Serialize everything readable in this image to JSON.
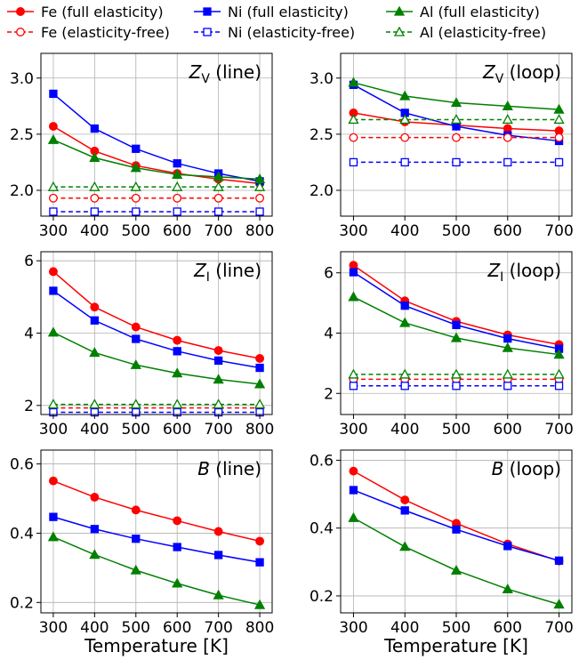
{
  "colors": {
    "Fe": "#ff0000",
    "Ni": "#0000ff",
    "Al": "#008000",
    "grid": "#b0b0b0"
  },
  "legend": {
    "placement": "top",
    "entries": [
      {
        "label": "Fe (full elasticity)",
        "color": "#ff0000",
        "marker": "circle",
        "style": "solid"
      },
      {
        "label": "Ni (full elasticity)",
        "color": "#0000ff",
        "marker": "square",
        "style": "solid"
      },
      {
        "label": "Al (full elasticity)",
        "color": "#008000",
        "marker": "triangle",
        "style": "solid"
      },
      {
        "label": "Fe (elasticity-free)",
        "color": "#ff0000",
        "marker": "circle",
        "style": "dashed"
      },
      {
        "label": "Ni (elasticity-free)",
        "color": "#0000ff",
        "marker": "square",
        "style": "dashed"
      },
      {
        "label": "Al (elasticity-free)",
        "color": "#008000",
        "marker": "triangle",
        "style": "dashed"
      }
    ]
  },
  "xlabel": "Temperature [K]",
  "chart_data": [
    {
      "type": "line",
      "title_sym": "Z",
      "title_sub": "V",
      "title_rest": " (line)",
      "title_italic": true,
      "x": [
        300,
        400,
        500,
        600,
        700,
        800
      ],
      "xlim": [
        270,
        830
      ],
      "ylim": [
        1.77,
        3.22
      ],
      "xticks": [
        300,
        400,
        500,
        600,
        700,
        800
      ],
      "yticks": [
        2.0,
        2.5,
        3.0
      ],
      "ytick_labels": [
        "2.0",
        "2.5",
        "3.0"
      ],
      "grid": true,
      "series": [
        {
          "name": "Fe (full elasticity)",
          "color": "#ff0000",
          "marker": "circle",
          "dashed": false,
          "filled": true,
          "values": [
            2.57,
            2.35,
            2.22,
            2.15,
            2.1,
            2.06
          ]
        },
        {
          "name": "Ni (full elasticity)",
          "color": "#0000ff",
          "marker": "square",
          "dashed": false,
          "filled": true,
          "values": [
            2.86,
            2.55,
            2.37,
            2.24,
            2.15,
            2.08
          ]
        },
        {
          "name": "Al (full elasticity)",
          "color": "#008000",
          "marker": "triangle",
          "dashed": false,
          "filled": true,
          "values": [
            2.45,
            2.29,
            2.2,
            2.14,
            2.12,
            2.1
          ]
        },
        {
          "name": "Fe (elasticity-free)",
          "color": "#ff0000",
          "marker": "circle",
          "dashed": true,
          "filled": false,
          "values": [
            1.93,
            1.93,
            1.93,
            1.93,
            1.93,
            1.93
          ]
        },
        {
          "name": "Ni (elasticity-free)",
          "color": "#0000ff",
          "marker": "square",
          "dashed": true,
          "filled": false,
          "values": [
            1.81,
            1.81,
            1.81,
            1.81,
            1.81,
            1.81
          ]
        },
        {
          "name": "Al (elasticity-free)",
          "color": "#008000",
          "marker": "triangle",
          "dashed": true,
          "filled": false,
          "values": [
            2.03,
            2.03,
            2.03,
            2.03,
            2.03,
            2.03
          ]
        }
      ]
    },
    {
      "type": "line",
      "title_sym": "Z",
      "title_sub": "V",
      "title_rest": " (loop)",
      "title_italic": true,
      "x": [
        300,
        400,
        500,
        600,
        700
      ],
      "xlim": [
        275,
        725
      ],
      "ylim": [
        1.77,
        3.22
      ],
      "xticks": [
        300,
        400,
        500,
        600,
        700
      ],
      "yticks": [
        2.0,
        2.5,
        3.0
      ],
      "ytick_labels": [
        "2.0",
        "2.5",
        "3.0"
      ],
      "grid": true,
      "series": [
        {
          "name": "Fe (full elasticity)",
          "color": "#ff0000",
          "marker": "circle",
          "dashed": false,
          "filled": true,
          "values": [
            2.69,
            2.61,
            2.58,
            2.55,
            2.53
          ]
        },
        {
          "name": "Ni (full elasticity)",
          "color": "#0000ff",
          "marker": "square",
          "dashed": false,
          "filled": true,
          "values": [
            2.94,
            2.69,
            2.57,
            2.49,
            2.44
          ]
        },
        {
          "name": "Al (full elasticity)",
          "color": "#008000",
          "marker": "triangle",
          "dashed": false,
          "filled": true,
          "values": [
            2.96,
            2.84,
            2.78,
            2.75,
            2.72
          ]
        },
        {
          "name": "Fe (elasticity-free)",
          "color": "#ff0000",
          "marker": "circle",
          "dashed": true,
          "filled": false,
          "values": [
            2.47,
            2.47,
            2.47,
            2.47,
            2.47
          ]
        },
        {
          "name": "Ni (elasticity-free)",
          "color": "#0000ff",
          "marker": "square",
          "dashed": true,
          "filled": false,
          "values": [
            2.25,
            2.25,
            2.25,
            2.25,
            2.25
          ]
        },
        {
          "name": "Al (elasticity-free)",
          "color": "#008000",
          "marker": "triangle",
          "dashed": true,
          "filled": false,
          "values": [
            2.63,
            2.63,
            2.63,
            2.63,
            2.63
          ]
        }
      ]
    },
    {
      "type": "line",
      "title_sym": "Z",
      "title_sub": "I",
      "title_rest": " (line)",
      "title_italic": true,
      "x": [
        300,
        400,
        500,
        600,
        700,
        800
      ],
      "xlim": [
        270,
        830
      ],
      "ylim": [
        1.75,
        6.25
      ],
      "xticks": [
        300,
        400,
        500,
        600,
        700,
        800
      ],
      "yticks": [
        2,
        4,
        6
      ],
      "ytick_labels": [
        "2",
        "4",
        "6"
      ],
      "grid": true,
      "series": [
        {
          "name": "Fe (full elasticity)",
          "color": "#ff0000",
          "marker": "circle",
          "dashed": false,
          "filled": true,
          "values": [
            5.7,
            4.72,
            4.17,
            3.8,
            3.52,
            3.3
          ]
        },
        {
          "name": "Ni (full elasticity)",
          "color": "#0000ff",
          "marker": "square",
          "dashed": false,
          "filled": true,
          "values": [
            5.17,
            4.35,
            3.84,
            3.5,
            3.24,
            3.04
          ]
        },
        {
          "name": "Al (full elasticity)",
          "color": "#008000",
          "marker": "triangle",
          "dashed": false,
          "filled": true,
          "values": [
            4.02,
            3.46,
            3.12,
            2.89,
            2.72,
            2.59
          ]
        },
        {
          "name": "Fe (elasticity-free)",
          "color": "#ff0000",
          "marker": "circle",
          "dashed": true,
          "filled": false,
          "values": [
            1.93,
            1.93,
            1.93,
            1.93,
            1.93,
            1.93
          ]
        },
        {
          "name": "Ni (elasticity-free)",
          "color": "#0000ff",
          "marker": "square",
          "dashed": true,
          "filled": false,
          "values": [
            1.81,
            1.81,
            1.81,
            1.81,
            1.81,
            1.81
          ]
        },
        {
          "name": "Al (elasticity-free)",
          "color": "#008000",
          "marker": "triangle",
          "dashed": true,
          "filled": false,
          "values": [
            2.03,
            2.03,
            2.03,
            2.03,
            2.03,
            2.03
          ]
        }
      ]
    },
    {
      "type": "line",
      "title_sym": "Z",
      "title_sub": "I",
      "title_rest": " (loop)",
      "title_italic": true,
      "x": [
        300,
        400,
        500,
        600,
        700
      ],
      "xlim": [
        275,
        725
      ],
      "ylim": [
        1.3,
        6.7
      ],
      "xticks": [
        300,
        400,
        500,
        600,
        700
      ],
      "yticks": [
        2,
        4,
        6
      ],
      "ytick_labels": [
        "2",
        "4",
        "6"
      ],
      "grid": true,
      "series": [
        {
          "name": "Fe (full elasticity)",
          "color": "#ff0000",
          "marker": "circle",
          "dashed": false,
          "filled": true,
          "values": [
            6.25,
            5.07,
            4.39,
            3.94,
            3.62
          ]
        },
        {
          "name": "Ni (full elasticity)",
          "color": "#0000ff",
          "marker": "square",
          "dashed": false,
          "filled": true,
          "values": [
            6.02,
            4.91,
            4.27,
            3.82,
            3.48
          ]
        },
        {
          "name": "Al (full elasticity)",
          "color": "#008000",
          "marker": "triangle",
          "dashed": false,
          "filled": true,
          "values": [
            5.2,
            4.34,
            3.84,
            3.51,
            3.29
          ]
        },
        {
          "name": "Fe (elasticity-free)",
          "color": "#ff0000",
          "marker": "circle",
          "dashed": true,
          "filled": false,
          "values": [
            2.47,
            2.47,
            2.47,
            2.47,
            2.47
          ]
        },
        {
          "name": "Ni (elasticity-free)",
          "color": "#0000ff",
          "marker": "square",
          "dashed": true,
          "filled": false,
          "values": [
            2.25,
            2.25,
            2.25,
            2.25,
            2.25
          ]
        },
        {
          "name": "Al (elasticity-free)",
          "color": "#008000",
          "marker": "triangle",
          "dashed": true,
          "filled": false,
          "values": [
            2.63,
            2.63,
            2.63,
            2.63,
            2.63
          ]
        }
      ]
    },
    {
      "type": "line",
      "title_sym": "B",
      "title_sub": "",
      "title_rest": " (line)",
      "title_italic": true,
      "x": [
        300,
        400,
        500,
        600,
        700,
        800
      ],
      "xlim": [
        270,
        830
      ],
      "ylim": [
        0.17,
        0.64
      ],
      "xticks": [
        300,
        400,
        500,
        600,
        700,
        800
      ],
      "yticks": [
        0.2,
        0.4,
        0.6
      ],
      "ytick_labels": [
        "0.2",
        "0.4",
        "0.6"
      ],
      "grid": true,
      "series": [
        {
          "name": "Fe (full elasticity)",
          "color": "#ff0000",
          "marker": "circle",
          "dashed": false,
          "filled": true,
          "values": [
            0.551,
            0.504,
            0.467,
            0.436,
            0.405,
            0.377
          ]
        },
        {
          "name": "Ni (full elasticity)",
          "color": "#0000ff",
          "marker": "square",
          "dashed": false,
          "filled": true,
          "values": [
            0.447,
            0.412,
            0.384,
            0.36,
            0.337,
            0.316
          ]
        },
        {
          "name": "Al (full elasticity)",
          "color": "#008000",
          "marker": "triangle",
          "dashed": false,
          "filled": true,
          "values": [
            0.389,
            0.338,
            0.293,
            0.255,
            0.221,
            0.193
          ]
        }
      ]
    },
    {
      "type": "line",
      "title_sym": "B",
      "title_sub": "",
      "title_rest": " (loop)",
      "title_italic": true,
      "x": [
        300,
        400,
        500,
        600,
        700
      ],
      "xlim": [
        275,
        725
      ],
      "ylim": [
        0.15,
        0.63
      ],
      "xticks": [
        300,
        400,
        500,
        600,
        700
      ],
      "yticks": [
        0.2,
        0.4,
        0.6
      ],
      "ytick_labels": [
        "0.2",
        "0.4",
        "0.6"
      ],
      "grid": true,
      "series": [
        {
          "name": "Fe (full elasticity)",
          "color": "#ff0000",
          "marker": "circle",
          "dashed": false,
          "filled": true,
          "values": [
            0.568,
            0.483,
            0.414,
            0.353,
            0.303
          ]
        },
        {
          "name": "Ni (full elasticity)",
          "color": "#0000ff",
          "marker": "square",
          "dashed": false,
          "filled": true,
          "values": [
            0.512,
            0.452,
            0.396,
            0.347,
            0.304
          ]
        },
        {
          "name": "Al (full elasticity)",
          "color": "#008000",
          "marker": "triangle",
          "dashed": false,
          "filled": true,
          "values": [
            0.43,
            0.345,
            0.275,
            0.22,
            0.175
          ]
        }
      ]
    }
  ]
}
